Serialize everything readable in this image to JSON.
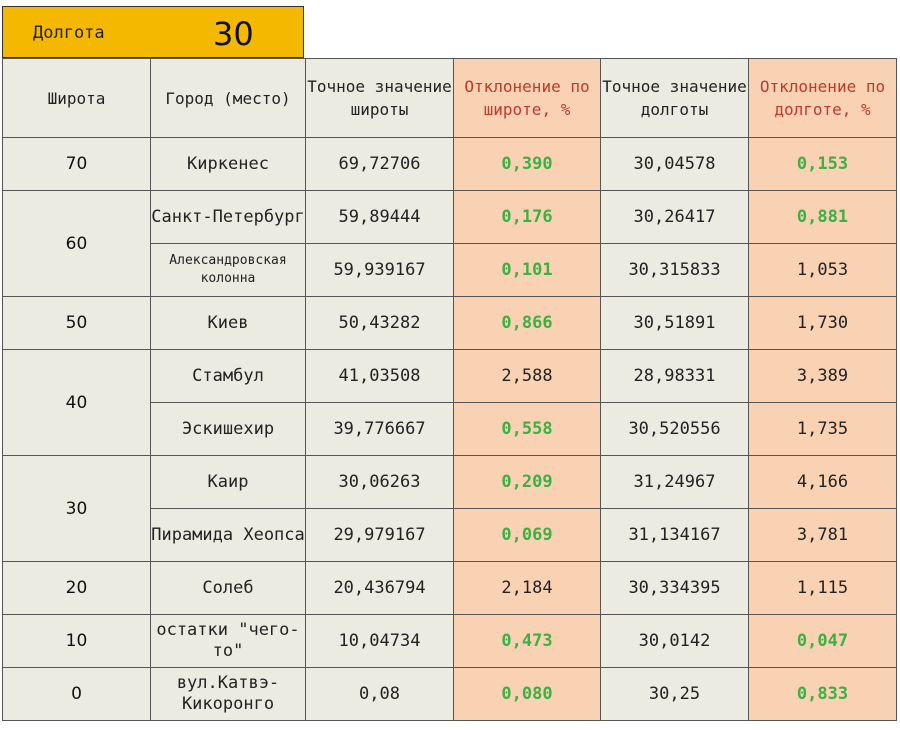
{
  "header": {
    "label": "Долгота",
    "value": "30"
  },
  "columns": [
    "Широта",
    "Город (место)",
    "Точное значение широты",
    "Отклонение по широте, %",
    "Точное значение долготы",
    "Отклонение по долготе, %"
  ],
  "groups": [
    {
      "lat": "70",
      "rows": [
        {
          "city": "Киркенес",
          "exact_lat": "69,72706",
          "dev_lat": "0,390",
          "exact_lon": "30,04578",
          "dev_lon": "0,153"
        }
      ]
    },
    {
      "lat": "60",
      "rows": [
        {
          "city": "Санкт-Петербург",
          "exact_lat": "59,89444",
          "dev_lat": "0,176",
          "exact_lon": "30,26417",
          "dev_lon": "0,881"
        },
        {
          "city": "Александровская колонна",
          "exact_lat": "59,939167",
          "dev_lat": "0,101",
          "exact_lon": "30,315833",
          "dev_lon": "1,053"
        }
      ]
    },
    {
      "lat": "50",
      "rows": [
        {
          "city": "Киев",
          "exact_lat": "50,43282",
          "dev_lat": "0,866",
          "exact_lon": "30,51891",
          "dev_lon": "1,730"
        }
      ]
    },
    {
      "lat": "40",
      "rows": [
        {
          "city": "Стамбул",
          "exact_lat": "41,03508",
          "dev_lat": "2,588",
          "exact_lon": "28,98331",
          "dev_lon": "3,389"
        },
        {
          "city": "Эскишехир",
          "exact_lat": "39,776667",
          "dev_lat": "0,558",
          "exact_lon": "30,520556",
          "dev_lon": "1,735"
        }
      ]
    },
    {
      "lat": "30",
      "rows": [
        {
          "city": "Каир",
          "exact_lat": "30,06263",
          "dev_lat": "0,209",
          "exact_lon": "31,24967",
          "dev_lon": "4,166"
        },
        {
          "city": "Пирамида Хеопса",
          "exact_lat": "29,979167",
          "dev_lat": "0,069",
          "exact_lon": "31,134167",
          "dev_lon": "3,781"
        }
      ]
    },
    {
      "lat": "20",
      "rows": [
        {
          "city": "Солеб",
          "exact_lat": "20,436794",
          "dev_lat": "2,184",
          "exact_lon": "30,334395",
          "dev_lon": "1,115"
        }
      ]
    },
    {
      "lat": "10",
      "rows": [
        {
          "city": "остатки \"чего-то\"",
          "exact_lat": "10,04734",
          "dev_lat": "0,473",
          "exact_lon": "30,0142",
          "dev_lon": "0,047"
        }
      ]
    },
    {
      "lat": "0",
      "rows": [
        {
          "city": "вул.Катвэ-Кикоронго",
          "exact_lat": "0,08",
          "dev_lat": "0,080",
          "exact_lon": "30,25",
          "dev_lon": "0,833"
        }
      ]
    }
  ],
  "colors": {
    "header_bg": "#f5b800",
    "dev_bg": "#f9d2b4",
    "cell_bg": "#ecebe2",
    "good": "#3cb043",
    "dev_header_text": "#c0392b"
  }
}
